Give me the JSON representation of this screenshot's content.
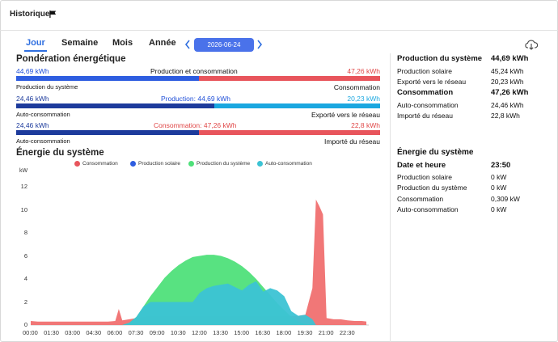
{
  "header": {
    "title": "Historique",
    "flag_icon": "flag-icon"
  },
  "tabs": [
    {
      "label": "Jour",
      "active": true
    },
    {
      "label": "Semaine",
      "active": false
    },
    {
      "label": "Mois",
      "active": false
    },
    {
      "label": "Année",
      "active": false
    }
  ],
  "date": "2026-06-24",
  "icons": {
    "prev": "chevron-left-icon",
    "next": "chevron-right-icon",
    "download": "cloud-download-icon"
  },
  "colors": {
    "production": "#1e4ed8",
    "consumption": "#e8555c",
    "export": "#1aa7e0",
    "import": "#e8555c",
    "production_dark": "#1d3b9c",
    "consumption_area": "#f07070",
    "solar_area": "#2e5de0",
    "system_area": "#4fe07a",
    "auto_area": "#3cc3d4"
  },
  "ponderation": {
    "title": "Pondération énergétique",
    "row1": {
      "left_value": "44,69 kWh",
      "center_label": "Production et consommation",
      "right_value": "47,26 kWh",
      "left_label": "Production du système",
      "right_label": "Consommation",
      "split": 0.486
    },
    "row2": {
      "left_value": "24,46 kWh",
      "center_label": "Production: 44,69 kWh",
      "right_value": "20,23 kWh",
      "left_label": "Auto-consommation",
      "right_label": "Exporté vers le réseau",
      "split": 0.547
    },
    "row3": {
      "left_value": "24,46 kWh",
      "center_label": "Consommation: 47,26 kWh",
      "right_value": "22,8 kWh",
      "left_label": "Auto-consommation",
      "right_label": "Importé du réseau",
      "split": 0.518
    }
  },
  "energy_section": {
    "title": "Énergie du système"
  },
  "chart_data": {
    "type": "area",
    "title": "Énergie du système",
    "ylabel": "kW",
    "ylim": [
      0,
      12
    ],
    "yticks": [
      "0",
      "2",
      "4",
      "6",
      "8",
      "10",
      "12"
    ],
    "xticks": [
      "00:00",
      "01:30",
      "03:00",
      "04:30",
      "06:00",
      "07:30",
      "09:00",
      "10:30",
      "12:00",
      "13:30",
      "15:00",
      "16:30",
      "18:00",
      "19:30",
      "21:00",
      "22:30"
    ],
    "x_hours": [
      0,
      0.5,
      1,
      1.5,
      2,
      2.5,
      3,
      3.5,
      4,
      4.5,
      5,
      5.5,
      6,
      6.25,
      6.5,
      7,
      7.5,
      8,
      8.5,
      9,
      9.5,
      10,
      10.5,
      11,
      11.5,
      12,
      12.5,
      13,
      13.5,
      14,
      14.5,
      15,
      15.5,
      16,
      16.5,
      17,
      17.5,
      18,
      18.5,
      19,
      19.5,
      20,
      20.25,
      20.5,
      20.75,
      21,
      21.5,
      22,
      22.5,
      23,
      23.5,
      23.83
    ],
    "series": [
      {
        "name": "Consommation",
        "values": [
          0.35,
          0.3,
          0.3,
          0.3,
          0.3,
          0.3,
          0.3,
          0.3,
          0.3,
          0.3,
          0.3,
          0.3,
          0.35,
          1.4,
          0.4,
          0.5,
          0.6,
          0.7,
          0.8,
          0.8,
          0.8,
          0.8,
          0.8,
          0.8,
          0.8,
          0.8,
          0.8,
          0.8,
          0.8,
          0.8,
          0.8,
          0.8,
          0.8,
          0.8,
          0.8,
          0.8,
          0.8,
          0.8,
          0.8,
          0.8,
          0.9,
          3.2,
          10.9,
          10.3,
          9.6,
          0.6,
          0.5,
          0.5,
          0.4,
          0.35,
          0.35,
          0.31
        ]
      },
      {
        "name": "Production solaire",
        "values": [
          0,
          0,
          0,
          0,
          0,
          0,
          0,
          0,
          0,
          0,
          0,
          0,
          0,
          0,
          0,
          0.2,
          0.7,
          1.6,
          2.5,
          3.3,
          4.1,
          4.7,
          5.2,
          5.6,
          5.9,
          6.0,
          6.1,
          6.1,
          6.0,
          5.8,
          5.5,
          5.1,
          4.6,
          4.0,
          3.3,
          2.6,
          1.9,
          1.3,
          0.7,
          0.3,
          0.1,
          0,
          0,
          0,
          0,
          0,
          0,
          0,
          0,
          0,
          0,
          0
        ]
      },
      {
        "name": "Production du système",
        "values": [
          0,
          0,
          0,
          0,
          0,
          0,
          0,
          0,
          0,
          0,
          0,
          0,
          0,
          0,
          0,
          0.2,
          0.7,
          1.6,
          2.5,
          3.3,
          4.1,
          4.7,
          5.2,
          5.6,
          5.9,
          6.0,
          6.1,
          6.1,
          6.0,
          5.8,
          5.5,
          5.1,
          4.6,
          4.0,
          3.3,
          2.6,
          1.9,
          1.3,
          0.7,
          0.3,
          0.1,
          0,
          0,
          0,
          0,
          0,
          0,
          0,
          0,
          0,
          0,
          0
        ]
      },
      {
        "name": "Auto-consommation",
        "values": [
          0,
          0,
          0,
          0,
          0,
          0,
          0,
          0,
          0,
          0,
          0,
          0,
          0,
          0,
          0,
          0.2,
          0.7,
          1.6,
          2.0,
          2.0,
          2.0,
          2.0,
          2.0,
          2.0,
          2.0,
          2.8,
          3.2,
          3.4,
          3.5,
          3.6,
          3.3,
          3.0,
          3.5,
          3.8,
          2.9,
          3.2,
          3.0,
          2.5,
          1.2,
          0.8,
          0.9,
          0.5,
          0,
          0,
          0,
          0,
          0,
          0,
          0,
          0,
          0,
          0
        ]
      }
    ],
    "legend": [
      "Consommation",
      "Production solaire",
      "Production du système",
      "Auto-consommation"
    ],
    "legend_placement": "top",
    "grid": false
  },
  "summary": {
    "production": {
      "label": "Production du système",
      "value": "44,69 kWh"
    },
    "production_rows": [
      {
        "label": "Production solaire",
        "value": "45,24 kWh"
      },
      {
        "label": "Exporté vers le réseau",
        "value": "20,23 kWh"
      }
    ],
    "consumption": {
      "label": "Consommation",
      "value": "47,26 kWh"
    },
    "consumption_rows": [
      {
        "label": "Auto-consommation",
        "value": "24,46 kWh"
      },
      {
        "label": "Importé du réseau",
        "value": "22,8 kWh"
      }
    ]
  },
  "system_energy": {
    "title": "Énergie du système",
    "datetime": {
      "label": "Date et heure",
      "value": "23:50"
    },
    "rows": [
      {
        "label": "Production solaire",
        "value": "0 kW"
      },
      {
        "label": "Production du système",
        "value": "0 kW"
      },
      {
        "label": "Consommation",
        "value": "0,309 kW"
      },
      {
        "label": "Auto-consommation",
        "value": "0 kW"
      }
    ]
  }
}
